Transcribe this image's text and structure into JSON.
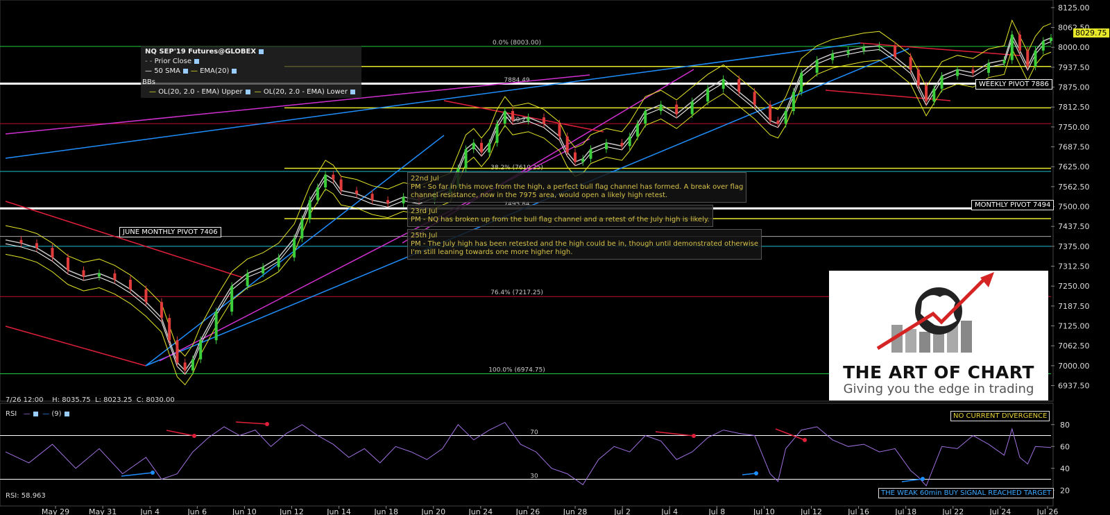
{
  "chart_data": {
    "type": "candlestick",
    "title": "NQ SEP'19 Futures@GLOBEX",
    "x_labels": [
      "May 29",
      "May 31",
      "Jun 4",
      "Jun 6",
      "Jun 10",
      "Jun 12",
      "Jun 14",
      "Jun 18",
      "Jun 20",
      "Jun 24",
      "Jun 26",
      "Jun 28",
      "Jul 2",
      "Jul 4",
      "Jul 8",
      "Jul 10",
      "Jul 12",
      "Jul 16",
      "Jul 18",
      "Jul 22",
      "Jul 24",
      "Jul 26"
    ],
    "y_ticks": [
      "8125.00",
      "8062.50",
      "8000.00",
      "7937.50",
      "7875.00",
      "7812.50",
      "7750.00",
      "7687.50",
      "7625.00",
      "7562.50",
      "7500.00",
      "7437.50",
      "7375.00",
      "7312.50",
      "7250.00",
      "7187.50",
      "7125.00",
      "7062.50",
      "7000.00",
      "6937.50"
    ],
    "ylim": [
      6906,
      8140
    ],
    "last_price": "8029.75",
    "price_path": [
      [
        0,
        7395
      ],
      [
        2,
        7385
      ],
      [
        4,
        7370
      ],
      [
        6,
        7340
      ],
      [
        8,
        7300
      ],
      [
        10,
        7280
      ],
      [
        12,
        7290
      ],
      [
        14,
        7270
      ],
      [
        16,
        7240
      ],
      [
        18,
        7200
      ],
      [
        20,
        7150
      ],
      [
        21,
        7080
      ],
      [
        22,
        7010
      ],
      [
        23,
        6985
      ],
      [
        24,
        7020
      ],
      [
        25,
        7080
      ],
      [
        27,
        7170
      ],
      [
        29,
        7250
      ],
      [
        31,
        7290
      ],
      [
        33,
        7310
      ],
      [
        35,
        7340
      ],
      [
        37,
        7400
      ],
      [
        38,
        7460
      ],
      [
        39,
        7520
      ],
      [
        40,
        7560
      ],
      [
        41,
        7600
      ],
      [
        42,
        7585
      ],
      [
        43,
        7550
      ],
      [
        45,
        7540
      ],
      [
        47,
        7520
      ],
      [
        49,
        7510
      ],
      [
        51,
        7530
      ],
      [
        53,
        7520
      ],
      [
        55,
        7540
      ],
      [
        57,
        7560
      ],
      [
        58,
        7620
      ],
      [
        59,
        7680
      ],
      [
        60,
        7700
      ],
      [
        61,
        7670
      ],
      [
        62,
        7700
      ],
      [
        63,
        7760
      ],
      [
        64,
        7800
      ],
      [
        65,
        7770
      ],
      [
        67,
        7780
      ],
      [
        69,
        7760
      ],
      [
        71,
        7720
      ],
      [
        72,
        7670
      ],
      [
        73,
        7640
      ],
      [
        74,
        7650
      ],
      [
        75,
        7680
      ],
      [
        77,
        7700
      ],
      [
        79,
        7690
      ],
      [
        80,
        7720
      ],
      [
        81,
        7760
      ],
      [
        82,
        7800
      ],
      [
        84,
        7820
      ],
      [
        86,
        7790
      ],
      [
        88,
        7830
      ],
      [
        90,
        7870
      ],
      [
        92,
        7900
      ],
      [
        94,
        7860
      ],
      [
        96,
        7820
      ],
      [
        98,
        7770
      ],
      [
        99,
        7760
      ],
      [
        100,
        7800
      ],
      [
        101,
        7860
      ],
      [
        102,
        7920
      ],
      [
        104,
        7960
      ],
      [
        106,
        7980
      ],
      [
        108,
        7990
      ],
      [
        110,
        8000
      ],
      [
        112,
        8005
      ],
      [
        114,
        7970
      ],
      [
        116,
        7930
      ],
      [
        117,
        7880
      ],
      [
        118,
        7830
      ],
      [
        119,
        7870
      ],
      [
        120,
        7910
      ],
      [
        122,
        7930
      ],
      [
        124,
        7920
      ],
      [
        126,
        7950
      ],
      [
        128,
        7960
      ],
      [
        129,
        8040
      ],
      [
        130,
        7990
      ],
      [
        131,
        7940
      ],
      [
        132,
        7990
      ],
      [
        133,
        8020
      ],
      [
        134,
        8030
      ]
    ],
    "n_steps": 134,
    "levels": [
      {
        "label": "0.0% (8003.00)",
        "value": 8003.0
      },
      {
        "label": "7884.49",
        "value": 7884.49
      },
      {
        "label": "7760.25",
        "value": 7760.25
      },
      {
        "label": "38.2% (7610.25)",
        "value": 7610.25
      },
      {
        "label": "7495.84",
        "value": 7495.84
      },
      {
        "label": "76.4% (7217.25)",
        "value": 7217.25
      },
      {
        "label": "100.0% (6974.75)",
        "value": 6974.75
      }
    ],
    "pivot_tags": [
      {
        "label": "WEEKLY PIVOT 7886",
        "value": 7886
      },
      {
        "label": "MONTHLY PIVOT 7494",
        "value": 7494
      },
      {
        "label": "JUNE MONTHLY PIVOT 7406",
        "value": 7406
      }
    ],
    "rsi": {
      "label": "RSI",
      "period": "(9)",
      "last": "RSI: 58.963",
      "ylim": [
        10,
        90
      ],
      "y_ticks": [
        "80",
        "60",
        "40",
        "20"
      ],
      "levels": [
        "70",
        "30"
      ],
      "path": [
        [
          0,
          55
        ],
        [
          3,
          45
        ],
        [
          6,
          62
        ],
        [
          9,
          40
        ],
        [
          12,
          58
        ],
        [
          15,
          35
        ],
        [
          18,
          50
        ],
        [
          20,
          30
        ],
        [
          22,
          35
        ],
        [
          24,
          55
        ],
        [
          26,
          68
        ],
        [
          28,
          78
        ],
        [
          30,
          70
        ],
        [
          32,
          75
        ],
        [
          34,
          60
        ],
        [
          36,
          72
        ],
        [
          38,
          80
        ],
        [
          40,
          70
        ],
        [
          42,
          62
        ],
        [
          44,
          50
        ],
        [
          46,
          58
        ],
        [
          48,
          45
        ],
        [
          50,
          60
        ],
        [
          52,
          55
        ],
        [
          54,
          48
        ],
        [
          56,
          58
        ],
        [
          58,
          80
        ],
        [
          60,
          66
        ],
        [
          62,
          75
        ],
        [
          64,
          82
        ],
        [
          66,
          62
        ],
        [
          68,
          55
        ],
        [
          70,
          40
        ],
        [
          72,
          35
        ],
        [
          74,
          25
        ],
        [
          76,
          48
        ],
        [
          78,
          60
        ],
        [
          80,
          55
        ],
        [
          82,
          70
        ],
        [
          84,
          65
        ],
        [
          86,
          48
        ],
        [
          88,
          55
        ],
        [
          90,
          68
        ],
        [
          92,
          75
        ],
        [
          94,
          72
        ],
        [
          96,
          70
        ],
        [
          98,
          35
        ],
        [
          99,
          28
        ],
        [
          100,
          58
        ],
        [
          102,
          75
        ],
        [
          104,
          78
        ],
        [
          106,
          66
        ],
        [
          108,
          60
        ],
        [
          110,
          62
        ],
        [
          112,
          55
        ],
        [
          114,
          58
        ],
        [
          116,
          38
        ],
        [
          117,
          32
        ],
        [
          118,
          24
        ],
        [
          120,
          60
        ],
        [
          122,
          58
        ],
        [
          124,
          70
        ],
        [
          126,
          62
        ],
        [
          128,
          52
        ],
        [
          129,
          76
        ],
        [
          130,
          50
        ],
        [
          131,
          44
        ],
        [
          132,
          60
        ],
        [
          134,
          59
        ]
      ]
    }
  },
  "legend": {
    "symbol": "NQ SEP'19 Futures@GLOBEX",
    "prior_close": "Prior Close",
    "sma": "50 SMA",
    "ema": "EMA(20)",
    "bbs": "BBs",
    "bb_upper": "OL(20, 2.0 - EMA) Upper",
    "bb_lower": "OL(20, 2.0 - EMA) Lower"
  },
  "ohlc": {
    "time": "7/26 12:00",
    "h": "H: 8035.75",
    "l": "L: 8023.25",
    "c": "C: 8030.00"
  },
  "notes": [
    {
      "date": "22nd Jul",
      "l1": "PM - So far in this move from the high, a perfect bull flag channel has formed. A break over flag",
      "l2": "channel resistance, now in the 7975 area, would open a likely high retest."
    },
    {
      "date": "23rd Jul",
      "l1": "PM - NQ has broken up from the bull flag channel and a retest of the July high is likely."
    },
    {
      "date": "25th Jul",
      "l1": "PM - The July high has been retested and the high could be in, though until demonstrated otherwise",
      "l2": "I'm still leaning towards one more higher high."
    }
  ],
  "logo": {
    "title": "THE ART OF CHART",
    "subtitle": "Giving you the edge in trading"
  },
  "rsi_boxes": {
    "divergence": "NO CURRENT DIVERGENCE",
    "signal": "THE WEAK 60min BUY SIGNAL REACHED TARGET"
  },
  "colors": {
    "grid": "#ffffff",
    "yellow": "#e8e82a",
    "pivot": "#ffffff",
    "bb": "#e6e628",
    "price": "#c8c8c8",
    "red": "#e0203a",
    "blue": "#1f8fff",
    "magenta": "#d030d0",
    "rsi": "#a070e0"
  }
}
